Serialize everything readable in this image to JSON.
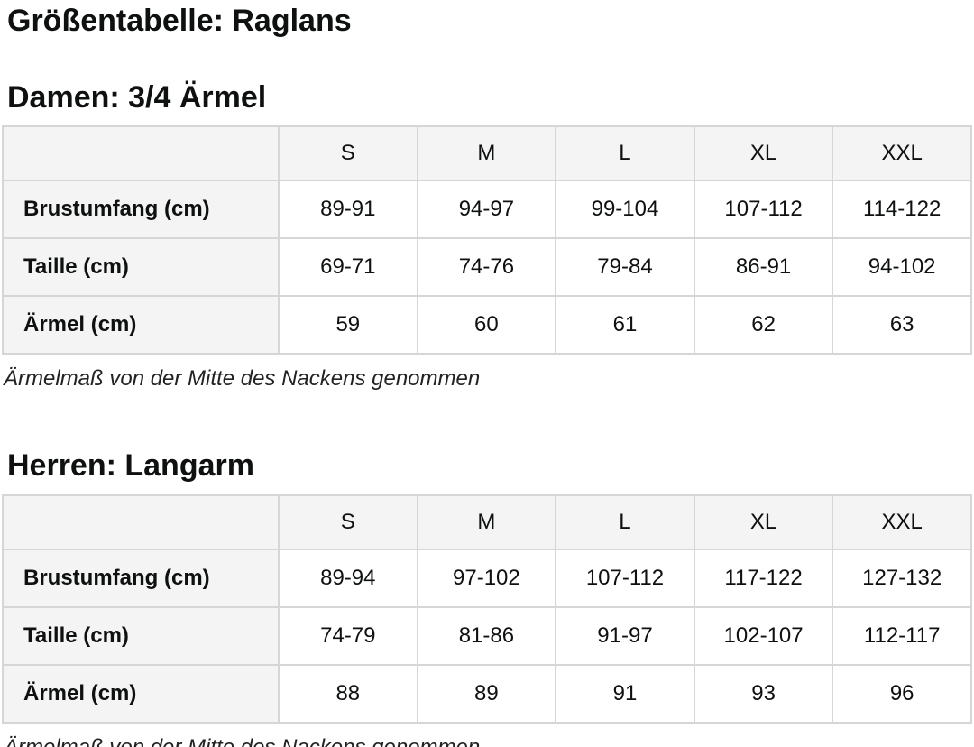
{
  "page": {
    "title": "Größentabelle: Raglans"
  },
  "colors": {
    "text": "#0f1111",
    "table_header_bg": "#f4f4f4",
    "table_label_bg": "#f4f4f4",
    "table_border": "#d6d6d6",
    "cell_bg": "#ffffff"
  },
  "sections": [
    {
      "heading": "Damen: 3/4 Ärmel",
      "note": "Ärmelmaß von der Mitte des Nackens genommen",
      "table": {
        "columns": [
          "S",
          "M",
          "L",
          "XL",
          "XXL"
        ],
        "rows": [
          {
            "label": "Brustumfang (cm)",
            "values": [
              "89-91",
              "94-97",
              "99-104",
              "107-112",
              "114-122"
            ]
          },
          {
            "label": "Taille (cm)",
            "values": [
              "69-71",
              "74-76",
              "79-84",
              "86-91",
              "94-102"
            ]
          },
          {
            "label": "Ärmel (cm)",
            "values": [
              "59",
              "60",
              "61",
              "62",
              "63"
            ]
          }
        ]
      }
    },
    {
      "heading": "Herren: Langarm",
      "note": "Ärmelmaß von der Mitte des Nackens genommen",
      "table": {
        "columns": [
          "S",
          "M",
          "L",
          "XL",
          "XXL"
        ],
        "rows": [
          {
            "label": "Brustumfang (cm)",
            "values": [
              "89-94",
              "97-102",
              "107-112",
              "117-122",
              "127-132"
            ]
          },
          {
            "label": "Taille (cm)",
            "values": [
              "74-79",
              "81-86",
              "91-97",
              "102-107",
              "112-117"
            ]
          },
          {
            "label": "Ärmel (cm)",
            "values": [
              "88",
              "89",
              "91",
              "93",
              "96"
            ]
          }
        ]
      }
    }
  ]
}
